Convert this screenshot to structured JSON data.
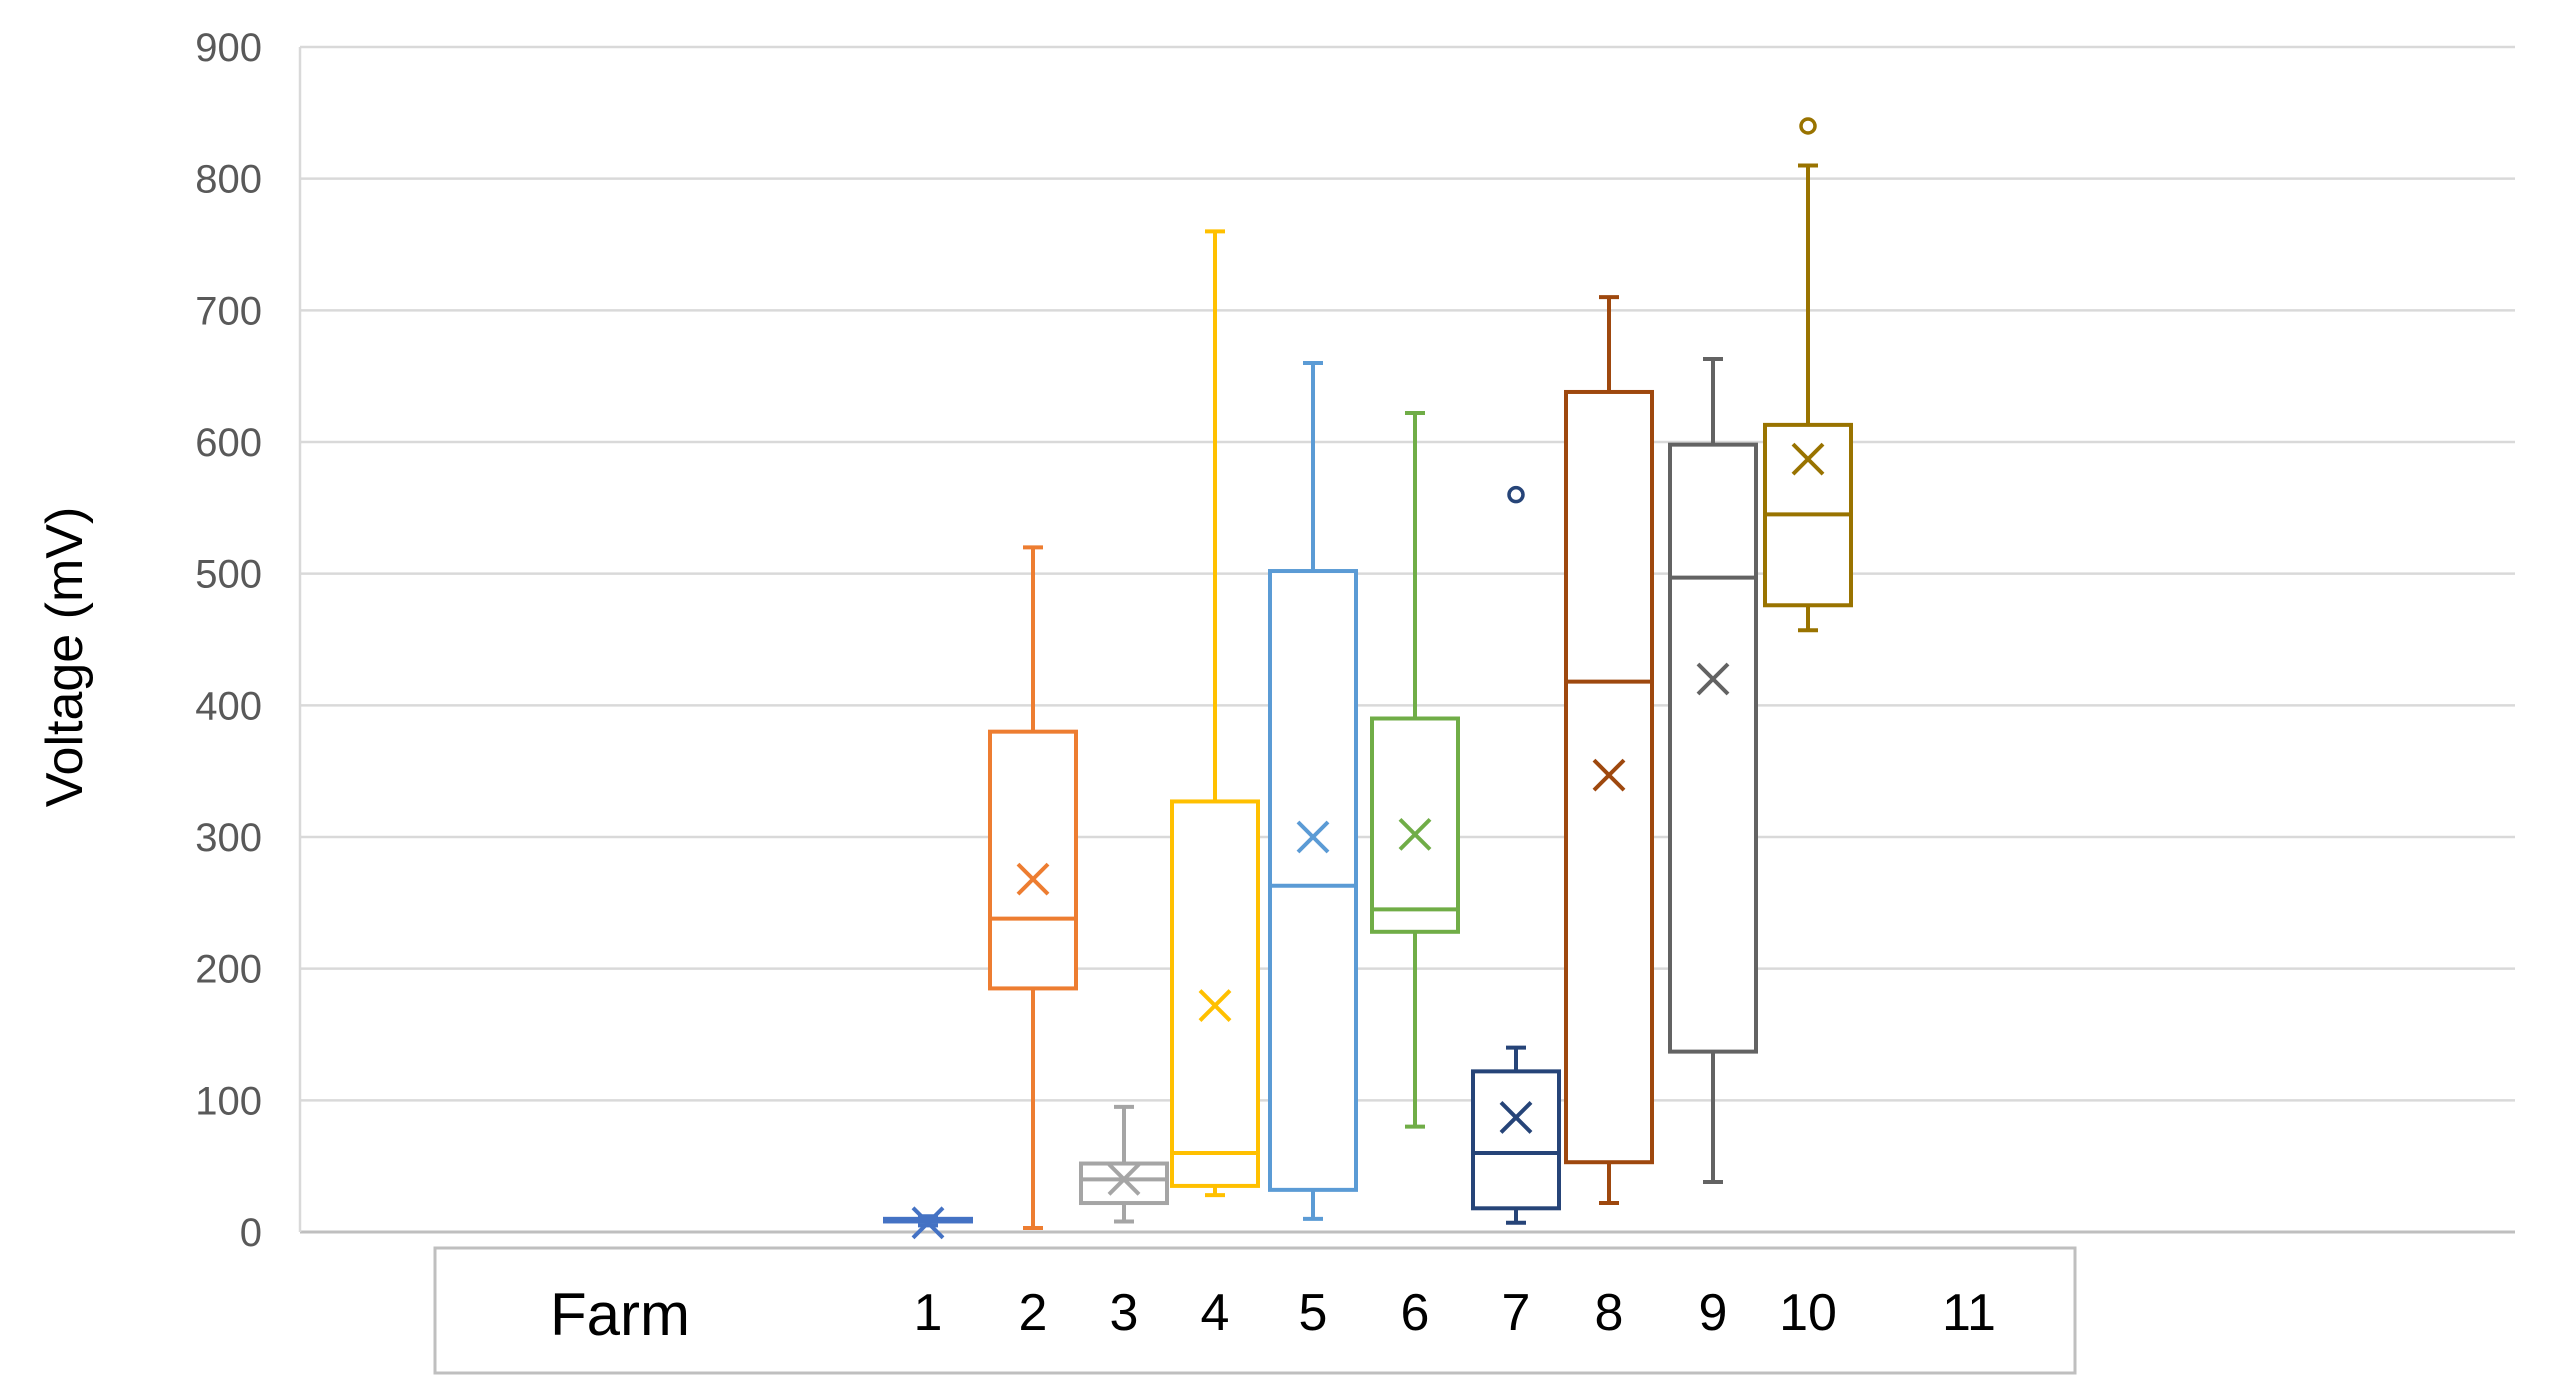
{
  "chart_data": {
    "type": "box",
    "ylabel": "Voltage (mV)",
    "xlabel": "Farm",
    "ylim": [
      0,
      900
    ],
    "yticks": [
      0,
      100,
      200,
      300,
      400,
      500,
      600,
      700,
      800,
      900
    ],
    "grid": true,
    "categories": [
      "1",
      "2",
      "3",
      "4",
      "5",
      "6",
      "7",
      "8",
      "9",
      "10",
      "11"
    ],
    "series": [
      {
        "category": "1",
        "color": "#4472c4",
        "min": 5,
        "q1": 8,
        "median": 9,
        "q3": 10,
        "max": 12,
        "mean": 7,
        "outliers": []
      },
      {
        "category": "2",
        "color": "#ed7d31",
        "min": 3,
        "q1": 185,
        "median": 238,
        "q3": 380,
        "max": 520,
        "mean": 268,
        "outliers": []
      },
      {
        "category": "3",
        "color": "#a5a5a5",
        "min": 8,
        "q1": 22,
        "median": 40,
        "q3": 52,
        "max": 95,
        "mean": 40,
        "outliers": []
      },
      {
        "category": "4",
        "color": "#ffc000",
        "min": 28,
        "q1": 35,
        "median": 60,
        "q3": 327,
        "max": 760,
        "mean": 172,
        "outliers": []
      },
      {
        "category": "5",
        "color": "#5b9bd5",
        "min": 10,
        "q1": 32,
        "median": 263,
        "q3": 502,
        "max": 660,
        "mean": 300,
        "outliers": []
      },
      {
        "category": "6",
        "color": "#70ad47",
        "min": 80,
        "q1": 228,
        "median": 245,
        "q3": 390,
        "max": 622,
        "mean": 302,
        "outliers": []
      },
      {
        "category": "7",
        "color": "#264478",
        "min": 7,
        "q1": 18,
        "median": 60,
        "q3": 122,
        "max": 140,
        "mean": 87,
        "outliers": [
          560
        ]
      },
      {
        "category": "8",
        "color": "#9e480e",
        "min": 22,
        "q1": 53,
        "median": 418,
        "q3": 638,
        "max": 710,
        "mean": 347,
        "outliers": []
      },
      {
        "category": "9",
        "color": "#636363",
        "min": 38,
        "q1": 137,
        "median": 497,
        "q3": 598,
        "max": 663,
        "mean": 420,
        "outliers": []
      },
      {
        "category": "10",
        "color": "#997300",
        "min": 457,
        "q1": 476,
        "median": 545,
        "q3": 613,
        "max": 810,
        "mean": 587,
        "outliers": [
          840
        ]
      }
    ]
  }
}
